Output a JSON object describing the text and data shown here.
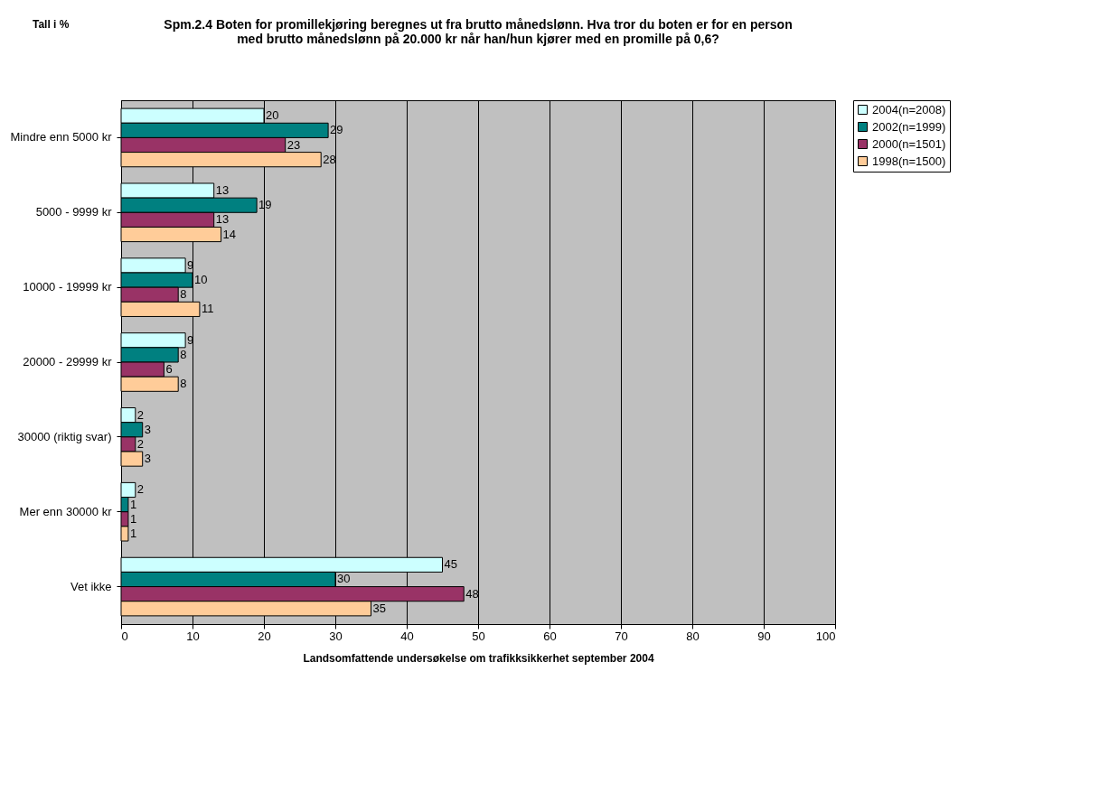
{
  "chart_data": {
    "type": "bar",
    "orientation": "horizontal",
    "title": "Spm.2.4 Boten for promillekjøring beregnes ut fra brutto månedslønn. Hva tror du boten er for en person\nmed brutto månedslønn på 20.000 kr når han/hun kjører med en promille på 0,6?",
    "xlabel": "Landsomfattende undersøkelse om trafikksikkerhet september 2004",
    "annotations": [
      "Tall i %"
    ],
    "categories": [
      "Mindre enn 5000 kr",
      "5000 - 9999 kr",
      "10000 - 19999 kr",
      "20000 - 29999 kr",
      "30000 (riktig svar)",
      "Mer enn 30000 kr",
      "Vet ikke"
    ],
    "series": [
      {
        "name": "2004(n=2008)",
        "color": "#ccffff",
        "values": [
          20,
          13,
          9,
          9,
          2,
          2,
          45
        ]
      },
      {
        "name": "2002(n=1999)",
        "color": "#008080",
        "values": [
          29,
          19,
          10,
          8,
          3,
          1,
          30
        ]
      },
      {
        "name": "2000(n=1501)",
        "color": "#993366",
        "values": [
          23,
          13,
          8,
          6,
          2,
          1,
          48
        ]
      },
      {
        "name": "1998(n=1500)",
        "color": "#ffcc99",
        "values": [
          28,
          14,
          11,
          8,
          3,
          1,
          35
        ]
      }
    ],
    "xlim": [
      0,
      100
    ],
    "xticks": [
      0,
      10,
      20,
      30,
      40,
      50,
      60,
      70,
      80,
      90,
      100
    ],
    "grid": "x",
    "legend": "right",
    "data_labels": true
  }
}
